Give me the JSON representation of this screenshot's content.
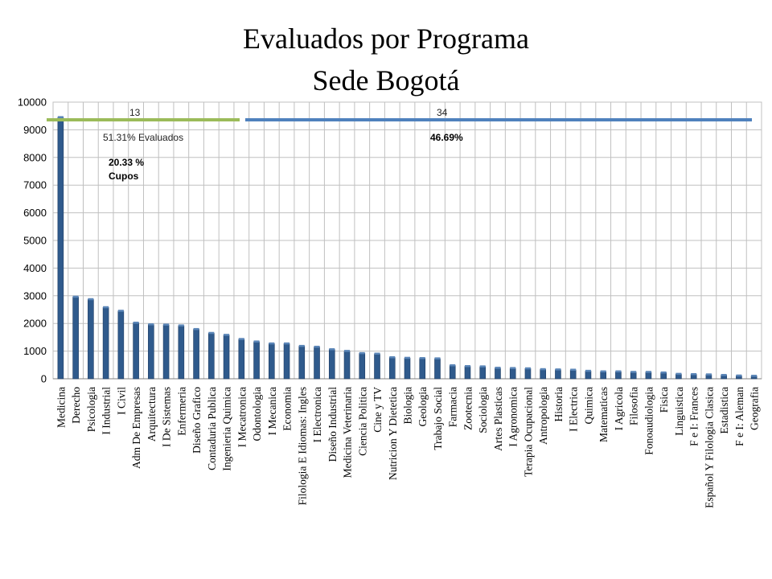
{
  "title_line1": "Evaluados por Programa",
  "title_line2": "Sede Bogotá",
  "annotations": {
    "left_count": "13",
    "right_count": "34",
    "left_evaluados": "51.31% Evaluados",
    "left_cupos_pct": "20.33 %",
    "left_cupos_label": "Cupos",
    "right_pct": "46.69%"
  },
  "colors": {
    "bar": "#2f5a8c",
    "green_line": "#9bbb59",
    "blue_line": "#4f81bd",
    "grid": "#c0c0c0"
  },
  "chart_data": {
    "type": "bar",
    "categories": [
      "Medicina",
      "Derecho",
      "Psicologia",
      "I Industrial",
      "I Civil",
      "Adm De Empresas",
      "Arquitectura",
      "I De Sistemas",
      "Enfermeria",
      "Diseño Grafico",
      "Contaduria Publica",
      "Ingenieria Quimica",
      "I Mecatronica",
      "Odontologia",
      "I Mecanica",
      "Economia",
      "Filologia E Idiomas: Ingles",
      "I Electronica",
      "Diseño Industrial",
      "Medicina Veterinaria",
      "Ciencia Politica",
      "Cine y TV",
      "Nutricion Y Dietetica",
      "Biologia",
      "Geologia",
      "Trabajo Social",
      "Farmacia",
      "Zootecnia",
      "Sociologia",
      "Artes Plasticas",
      "I Agronomica",
      "Terapia Ocupacional",
      "Antropologia",
      "Historia",
      "I Electrica",
      "Quimica",
      "Matematicas",
      "I Agricola",
      "Filosofia",
      "Fonoaudiologia",
      "Fisica",
      "Linguistica",
      "F e I: Frances",
      "Español Y Filologia Clasica",
      "Estadistica",
      "F e I: Aleman",
      "Geografia"
    ],
    "values": [
      9450,
      2960,
      2870,
      2580,
      2450,
      2020,
      1960,
      1950,
      1920,
      1790,
      1650,
      1580,
      1430,
      1340,
      1270,
      1270,
      1180,
      1150,
      1060,
      1000,
      920,
      900,
      770,
      750,
      740,
      730,
      480,
      450,
      440,
      390,
      380,
      370,
      340,
      330,
      320,
      280,
      260,
      260,
      240,
      240,
      220,
      170,
      160,
      150,
      130,
      110,
      100
    ],
    "ylim": [
      0,
      10000
    ],
    "yticks": [
      0,
      1000,
      2000,
      3000,
      4000,
      5000,
      6000,
      7000,
      8000,
      9000,
      10000
    ],
    "grid": true,
    "legend": "none"
  }
}
